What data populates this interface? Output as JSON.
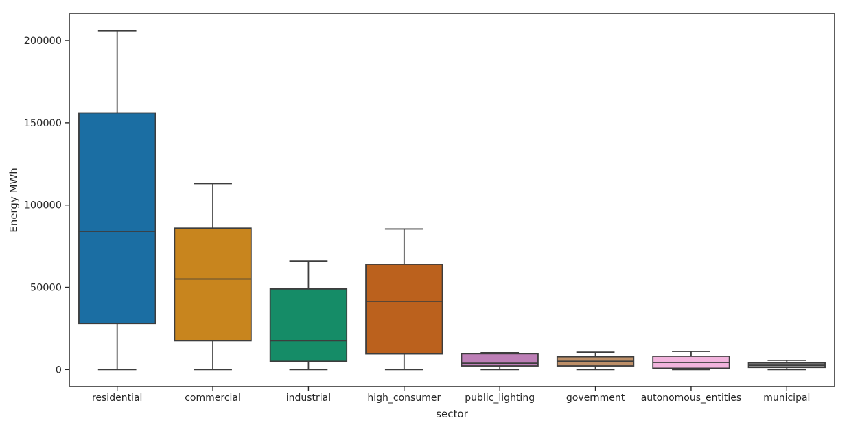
{
  "chart_data": {
    "type": "box",
    "title": "",
    "xlabel": "sector",
    "ylabel": "Energy MWh",
    "categories": [
      "residential",
      "commercial",
      "industrial",
      "high_consumer",
      "public_lighting",
      "government",
      "autonomous_entities",
      "municipal"
    ],
    "yticks": [
      0,
      50000,
      100000,
      150000,
      200000
    ],
    "ytick_labels": [
      "0",
      "50000",
      "100000",
      "150000",
      "200000"
    ],
    "ylim": [
      -10300,
      216300
    ],
    "grid": false,
    "legend_position": "none",
    "frame": "full-box",
    "series": [
      {
        "category": "residential",
        "color": "#1b6ea3",
        "whislo": 0,
        "q1": 28000,
        "med": 84000,
        "q3": 156000,
        "whishi": 206000
      },
      {
        "category": "commercial",
        "color": "#c8851e",
        "whislo": 0,
        "q1": 17500,
        "med": 55000,
        "q3": 86000,
        "whishi": 113000
      },
      {
        "category": "industrial",
        "color": "#158c67",
        "whislo": 0,
        "q1": 5000,
        "med": 17500,
        "q3": 49000,
        "whishi": 66000
      },
      {
        "category": "high_consumer",
        "color": "#bb611d",
        "whislo": 0,
        "q1": 9500,
        "med": 41500,
        "q3": 64000,
        "whishi": 85500
      },
      {
        "category": "public_lighting",
        "color": "#bd7fb7",
        "whislo": 0,
        "q1": 2200,
        "med": 3800,
        "q3": 9600,
        "whishi": 10200
      },
      {
        "category": "government",
        "color": "#bd8f68",
        "whislo": 0,
        "q1": 2200,
        "med": 5000,
        "q3": 7800,
        "whishi": 10500
      },
      {
        "category": "autonomous_entities",
        "color": "#f2b4dd",
        "whislo": 0,
        "q1": 800,
        "med": 4300,
        "q3": 8100,
        "whishi": 11000
      },
      {
        "category": "municipal",
        "color": "#8c8c8c",
        "whislo": 0,
        "q1": 1300,
        "med": 2600,
        "q3": 4100,
        "whishi": 5600
      }
    ],
    "line_color": "#3d3d3d",
    "spine_color": "#262626",
    "text_color": "#262626",
    "background_color": "#ffffff"
  }
}
